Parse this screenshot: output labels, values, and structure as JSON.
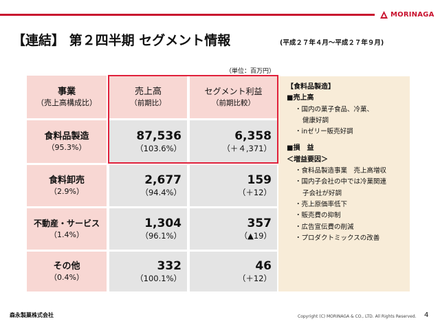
{
  "header": {
    "brand": "MORINAGA",
    "title": "【連結】 第２四半期 セグメント情報",
    "period": "(平成２７年４月～平成２７年９月)",
    "unit": "（単位：百万円）"
  },
  "table": {
    "col_headers": {
      "business": "事業",
      "business_sub": "（売上高構成比）",
      "sales": "売上高",
      "sales_sub": "（前期比）",
      "profit": "セグメント利益",
      "profit_sub": "（前期比較）"
    },
    "rows": [
      {
        "name": "食料品製造",
        "share": "（95.3%）",
        "sales": "87,536",
        "sales_ratio": "（103.6%）",
        "profit": "6,358",
        "profit_change": "（＋４,371）"
      },
      {
        "name": "食料卸売",
        "share": "（2.9%）",
        "sales": "2,677",
        "sales_ratio": "（94.4%）",
        "profit": "159",
        "profit_change": "（＋12）"
      },
      {
        "name": "不動産・サービス",
        "share": "（1.4%）",
        "sales": "1,304",
        "sales_ratio": "（96.1%）",
        "profit": "357",
        "profit_change": "（▲19）"
      },
      {
        "name": "その他",
        "share": "（0.4%）",
        "sales": "332",
        "sales_ratio": "（100.1%）",
        "profit": "46",
        "profit_change": "（＋12）"
      }
    ]
  },
  "side_panel": {
    "lines": [
      {
        "text": "【食料品製造】",
        "style": "b"
      },
      {
        "text": "■売上高",
        "style": "b"
      },
      {
        "text": "・国内の菓子食品、冷菓、",
        "style": "i1"
      },
      {
        "text": "健康好調",
        "style": "i2"
      },
      {
        "text": "・inゼリー販売好調",
        "style": "i1"
      },
      {
        "text": "",
        "style": ""
      },
      {
        "text": "■損　益",
        "style": "b"
      },
      {
        "text": "＜増益要因＞",
        "style": "b"
      },
      {
        "text": "・食料品製造事業　売上高増収",
        "style": "i1"
      },
      {
        "text": "・国内子会社の中では冷菓関連",
        "style": "i1"
      },
      {
        "text": "子会社が好調",
        "style": "i2"
      },
      {
        "text": "・売上原価率低下",
        "style": "i1"
      },
      {
        "text": "・販売費の抑制",
        "style": "i1"
      },
      {
        "text": "・広告宣伝費の削減",
        "style": "i1"
      },
      {
        "text": "・プロダクトミックスの改善",
        "style": "i1"
      }
    ]
  },
  "footer": {
    "company": "森永製菓株式会社",
    "copyright": "Copyright (C) MORINAGA & CO., LTD. All Rights Reserved.",
    "page": "4"
  },
  "colors": {
    "brand_red": "#c8102e",
    "highlight_red": "#e0203b",
    "pink": "#f8d7d3",
    "gray": "#e4e4e4",
    "panel": "#f8ecd8"
  }
}
